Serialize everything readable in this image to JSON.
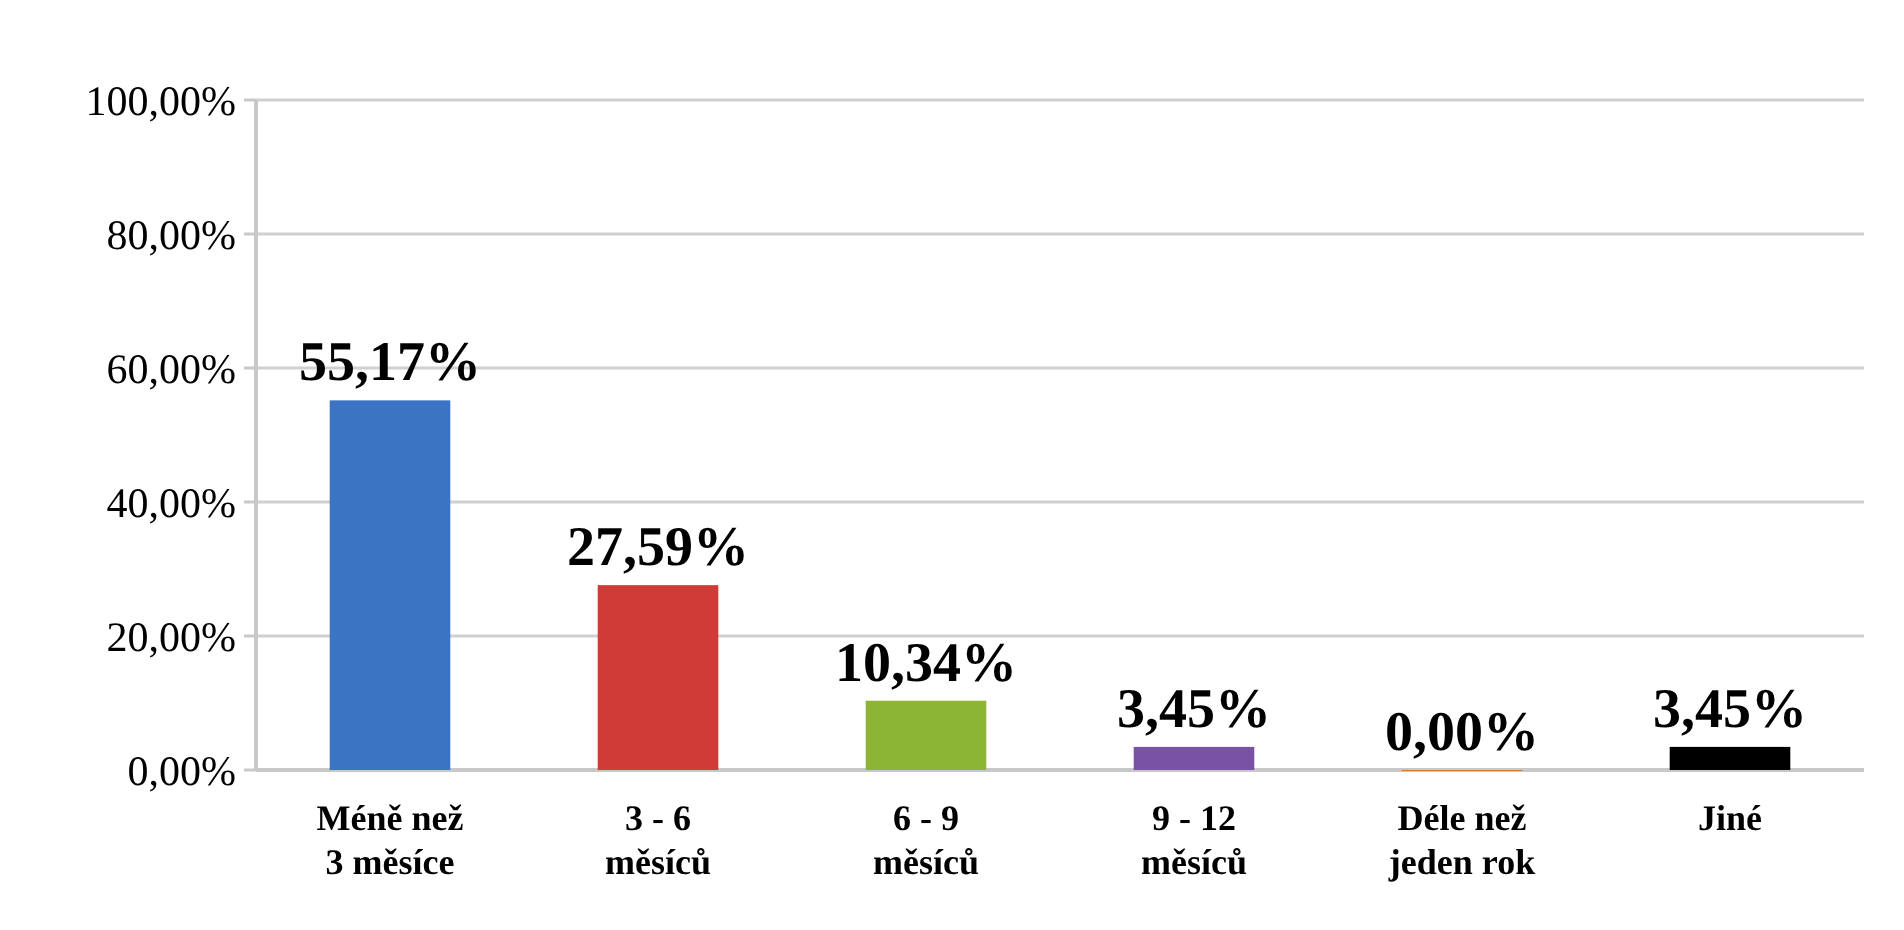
{
  "chart_data": {
    "type": "bar",
    "categories": [
      "Méně než 3 měsíce",
      "3 - 6 měsíců",
      "6 - 9 měsíců",
      "9 - 12 měsíců",
      "Déle než jeden rok",
      "Jiné"
    ],
    "values": [
      55.17,
      27.59,
      10.34,
      3.45,
      0,
      3.45
    ],
    "colors": [
      "#3a74c2",
      "#d03b37",
      "#8cb435",
      "#7952a5",
      "#d6772a",
      "#000000"
    ],
    "value_labels": [
      "55,17%",
      "27,59%",
      "10,34%",
      "3,45%",
      "0,00%",
      "3,45%"
    ],
    "ylim": [
      0,
      100
    ],
    "yticks": [
      {
        "value": 0,
        "label": "0,00%"
      },
      {
        "value": 20,
        "label": "20,00%"
      },
      {
        "value": 40,
        "label": "40,00%"
      },
      {
        "value": 60,
        "label": "60,00%"
      },
      {
        "value": 80,
        "label": "80,00%"
      },
      {
        "value": 100,
        "label": "100,00%"
      }
    ],
    "grid": true
  }
}
